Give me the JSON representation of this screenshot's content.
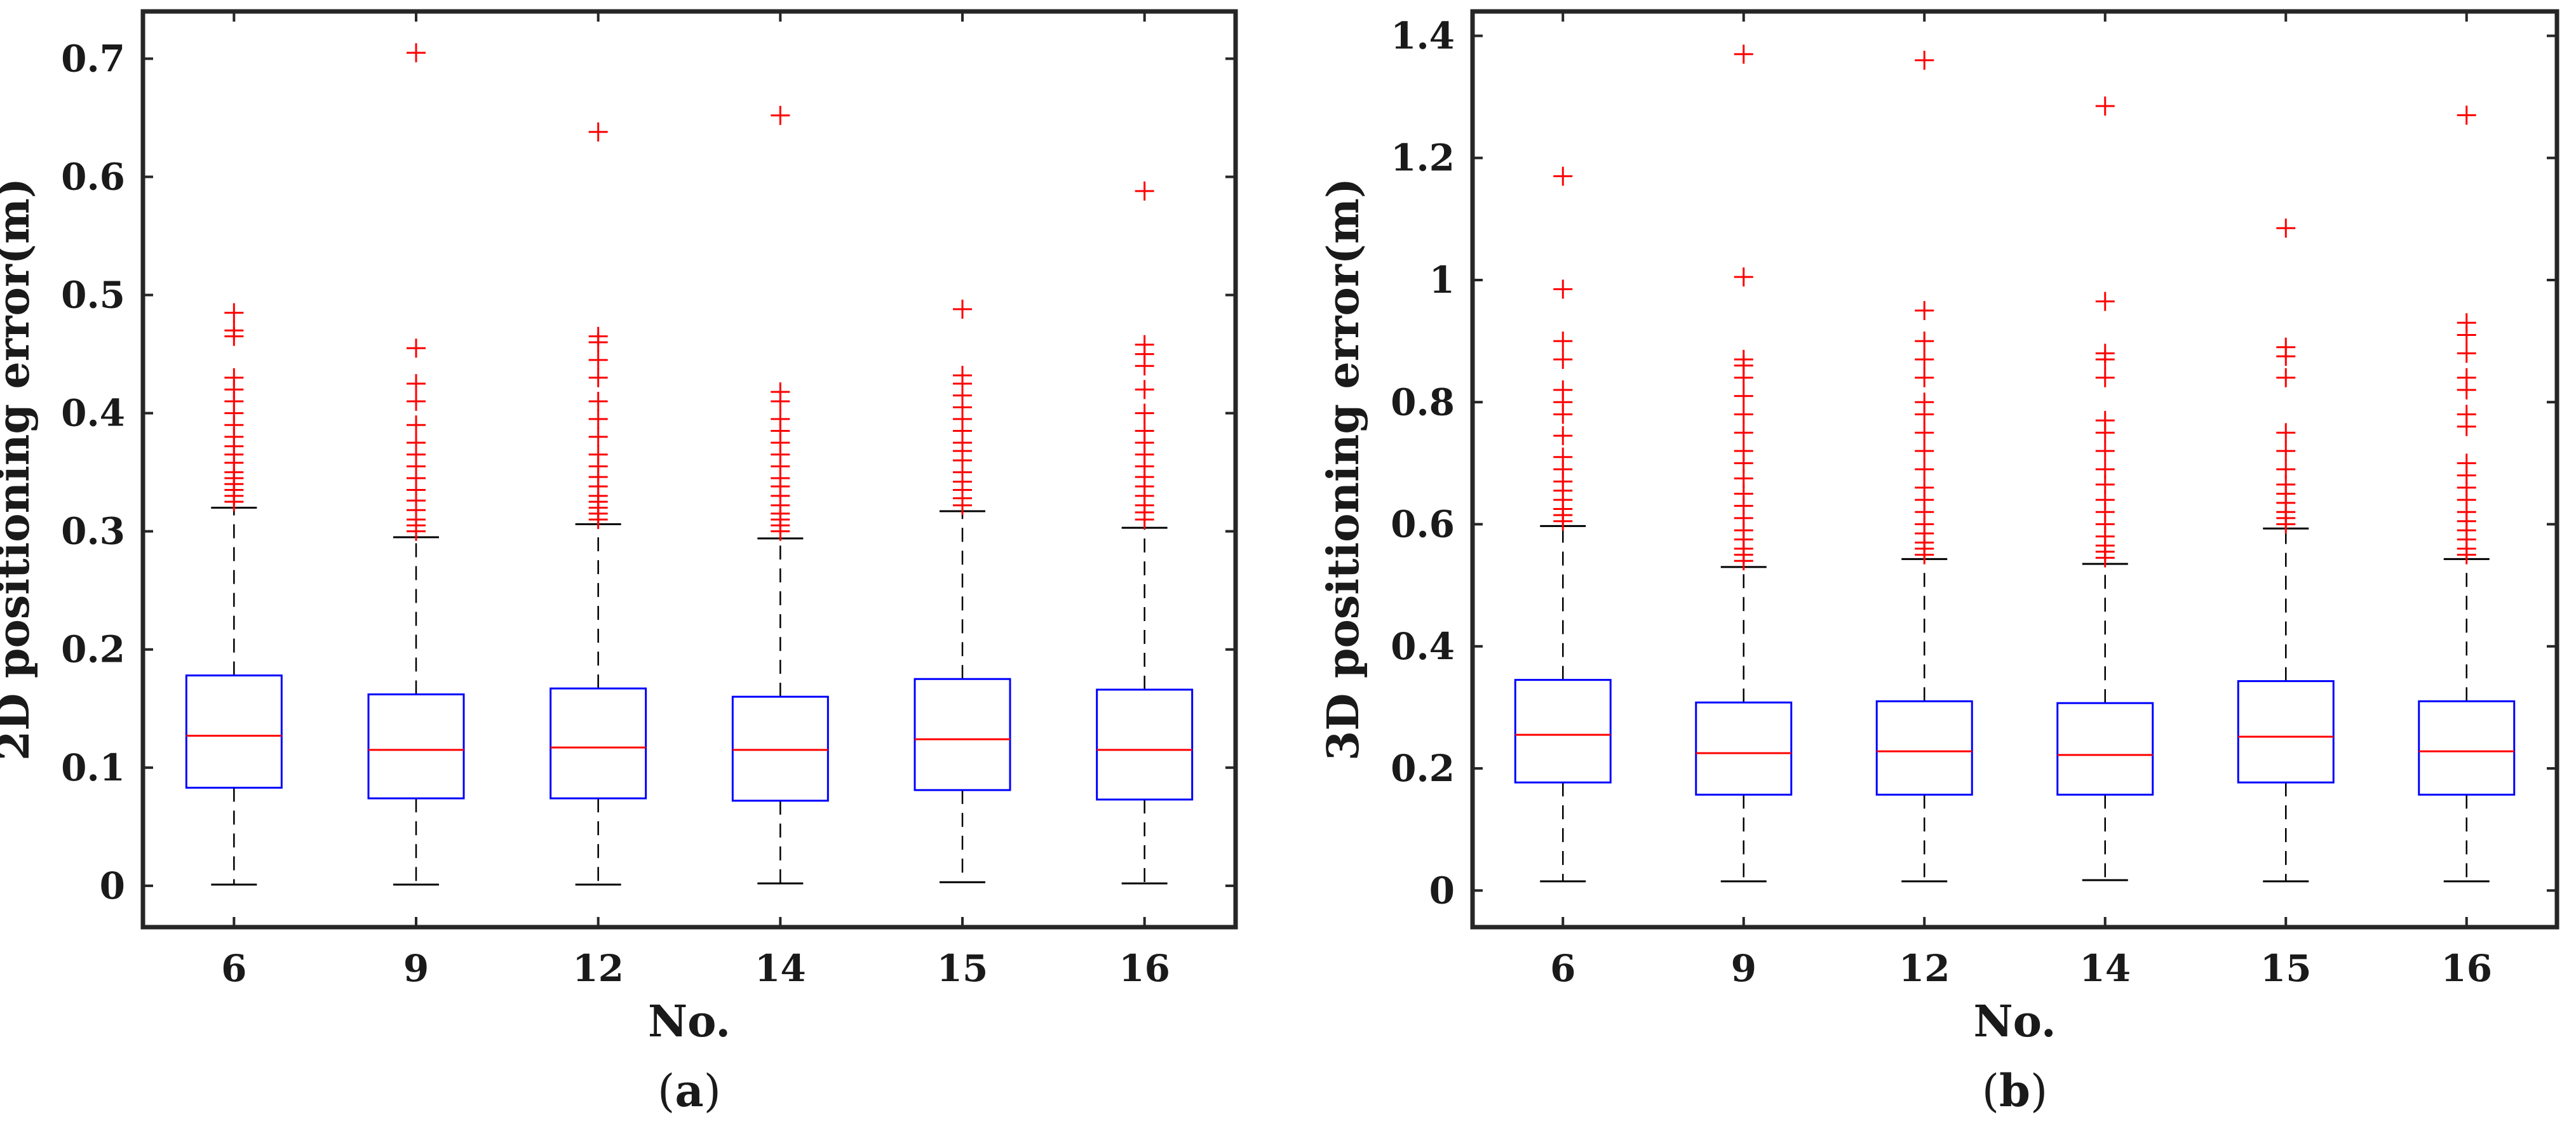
{
  "chart_data": [
    {
      "type": "box",
      "panel_label": "a",
      "xlabel": "No.",
      "ylabel": "2D positioning error(m)",
      "categories": [
        "6",
        "9",
        "12",
        "14",
        "15",
        "16"
      ],
      "ylim": [
        -0.035,
        0.74
      ],
      "yticks": [
        0,
        0.1,
        0.2,
        0.3,
        0.4,
        0.5,
        0.6,
        0.7
      ],
      "ytick_labels": [
        "0",
        "0.1",
        "0.2",
        "0.3",
        "0.4",
        "0.5",
        "0.6",
        "0.7"
      ],
      "colors": {
        "box": "#0000ff",
        "median": "#ff0000",
        "whisker": "#000000",
        "outlier": "#ff0000",
        "frame": "#262626"
      },
      "boxes": [
        {
          "whislo": 0.001,
          "q1": 0.083,
          "med": 0.127,
          "q3": 0.178,
          "whishi": 0.32,
          "fliers": [
            0.325,
            0.33,
            0.335,
            0.34,
            0.345,
            0.35,
            0.358,
            0.365,
            0.372,
            0.38,
            0.39,
            0.4,
            0.41,
            0.42,
            0.43,
            0.465,
            0.47,
            0.485
          ]
        },
        {
          "whislo": 0.001,
          "q1": 0.074,
          "med": 0.115,
          "q3": 0.162,
          "whishi": 0.295,
          "fliers": [
            0.3,
            0.305,
            0.31,
            0.318,
            0.326,
            0.335,
            0.345,
            0.355,
            0.365,
            0.375,
            0.39,
            0.41,
            0.425,
            0.455,
            0.705
          ]
        },
        {
          "whislo": 0.001,
          "q1": 0.074,
          "med": 0.117,
          "q3": 0.167,
          "whishi": 0.306,
          "fliers": [
            0.31,
            0.315,
            0.32,
            0.325,
            0.33,
            0.338,
            0.346,
            0.355,
            0.365,
            0.38,
            0.395,
            0.41,
            0.43,
            0.445,
            0.46,
            0.465,
            0.638
          ]
        },
        {
          "whislo": 0.002,
          "q1": 0.072,
          "med": 0.115,
          "q3": 0.16,
          "whishi": 0.294,
          "fliers": [
            0.3,
            0.305,
            0.31,
            0.315,
            0.322,
            0.33,
            0.338,
            0.345,
            0.355,
            0.365,
            0.375,
            0.385,
            0.395,
            0.41,
            0.418,
            0.652
          ]
        },
        {
          "whislo": 0.003,
          "q1": 0.081,
          "med": 0.124,
          "q3": 0.175,
          "whishi": 0.317,
          "fliers": [
            0.322,
            0.328,
            0.335,
            0.342,
            0.35,
            0.36,
            0.368,
            0.375,
            0.385,
            0.395,
            0.405,
            0.415,
            0.425,
            0.432,
            0.488
          ]
        },
        {
          "whislo": 0.002,
          "q1": 0.073,
          "med": 0.115,
          "q3": 0.166,
          "whishi": 0.303,
          "fliers": [
            0.31,
            0.316,
            0.322,
            0.33,
            0.338,
            0.346,
            0.355,
            0.365,
            0.375,
            0.385,
            0.4,
            0.42,
            0.44,
            0.45,
            0.458,
            0.588
          ]
        }
      ]
    },
    {
      "type": "box",
      "panel_label": "b",
      "xlabel": "No.",
      "ylabel": "3D positioning error(m)",
      "categories": [
        "6",
        "9",
        "12",
        "14",
        "15",
        "16"
      ],
      "ylim": [
        -0.06,
        1.44
      ],
      "yticks": [
        0,
        0.2,
        0.4,
        0.6,
        0.8,
        1,
        1.2,
        1.4
      ],
      "ytick_labels": [
        "0",
        "0.2",
        "0.4",
        "0.6",
        "0.8",
        "1",
        "1.2",
        "1.4"
      ],
      "colors": {
        "box": "#0000ff",
        "median": "#ff0000",
        "whisker": "#000000",
        "outlier": "#ff0000",
        "frame": "#262626"
      },
      "boxes": [
        {
          "whislo": 0.015,
          "q1": 0.177,
          "med": 0.255,
          "q3": 0.345,
          "whishi": 0.597,
          "fliers": [
            0.605,
            0.615,
            0.625,
            0.64,
            0.655,
            0.67,
            0.69,
            0.71,
            0.745,
            0.78,
            0.8,
            0.82,
            0.87,
            0.9,
            0.985,
            1.17
          ]
        },
        {
          "whislo": 0.015,
          "q1": 0.157,
          "med": 0.225,
          "q3": 0.308,
          "whishi": 0.53,
          "fliers": [
            0.54,
            0.55,
            0.56,
            0.575,
            0.59,
            0.61,
            0.63,
            0.65,
            0.675,
            0.7,
            0.72,
            0.75,
            0.78,
            0.81,
            0.84,
            0.86,
            0.87,
            1.005,
            1.37
          ]
        },
        {
          "whislo": 0.015,
          "q1": 0.157,
          "med": 0.228,
          "q3": 0.31,
          "whishi": 0.543,
          "fliers": [
            0.55,
            0.56,
            0.57,
            0.585,
            0.6,
            0.62,
            0.64,
            0.66,
            0.69,
            0.72,
            0.75,
            0.78,
            0.8,
            0.84,
            0.87,
            0.9,
            0.95,
            1.36
          ]
        },
        {
          "whislo": 0.017,
          "q1": 0.157,
          "med": 0.222,
          "q3": 0.307,
          "whishi": 0.535,
          "fliers": [
            0.545,
            0.555,
            0.565,
            0.58,
            0.6,
            0.62,
            0.64,
            0.665,
            0.69,
            0.72,
            0.75,
            0.77,
            0.84,
            0.87,
            0.88,
            0.965,
            1.285
          ]
        },
        {
          "whislo": 0.015,
          "q1": 0.177,
          "med": 0.252,
          "q3": 0.343,
          "whishi": 0.593,
          "fliers": [
            0.6,
            0.61,
            0.62,
            0.635,
            0.65,
            0.665,
            0.69,
            0.72,
            0.75,
            0.84,
            0.875,
            0.89,
            1.085
          ]
        },
        {
          "whislo": 0.015,
          "q1": 0.157,
          "med": 0.228,
          "q3": 0.31,
          "whishi": 0.543,
          "fliers": [
            0.55,
            0.56,
            0.575,
            0.59,
            0.605,
            0.62,
            0.64,
            0.66,
            0.68,
            0.7,
            0.76,
            0.78,
            0.82,
            0.84,
            0.88,
            0.91,
            0.93,
            1.27
          ]
        }
      ]
    }
  ]
}
